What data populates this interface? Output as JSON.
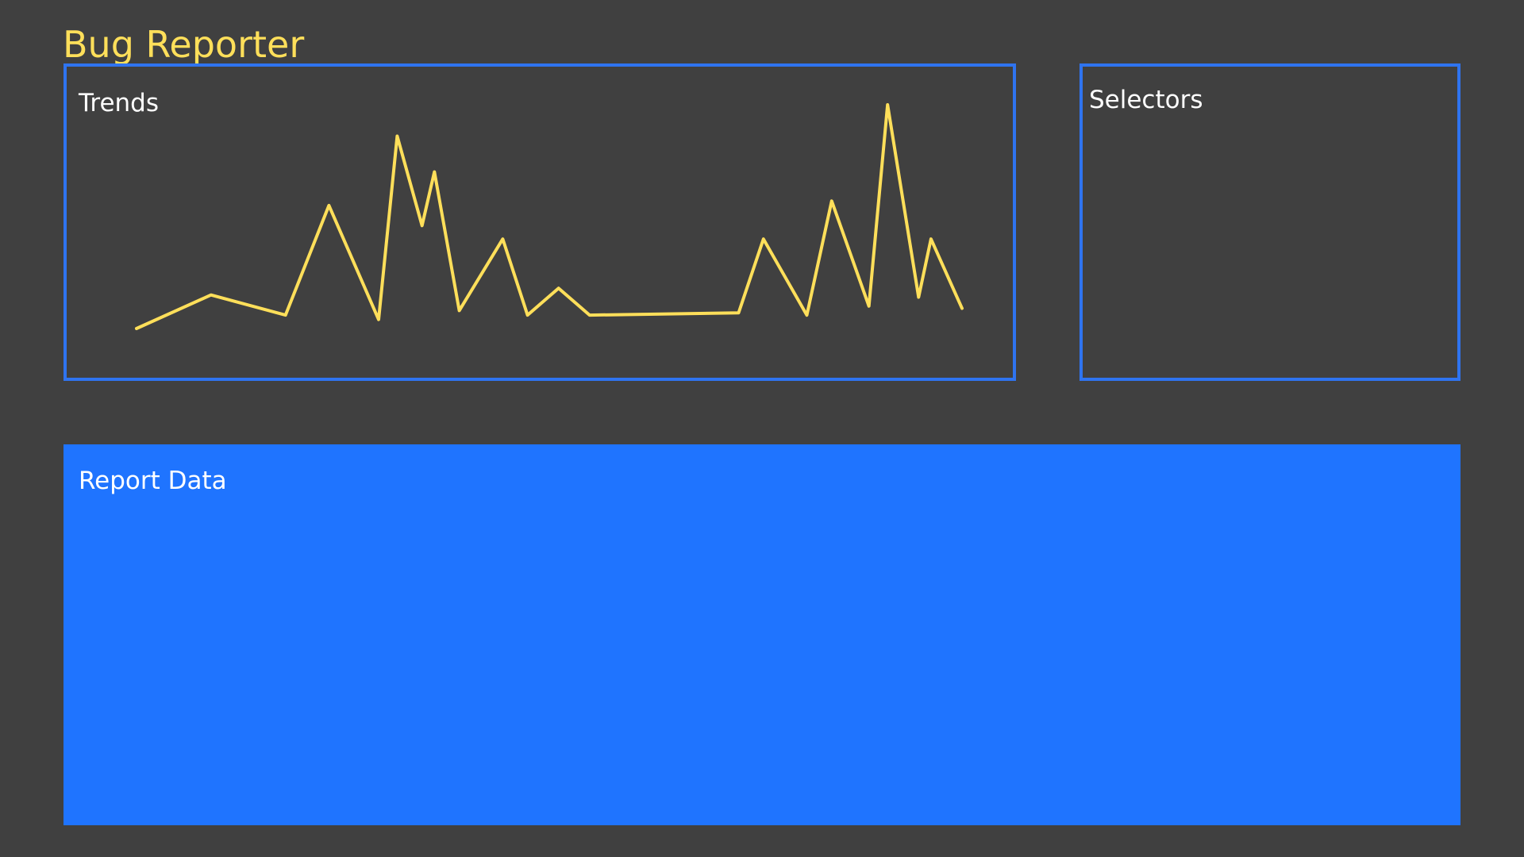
{
  "app": {
    "title": "Bug Reporter"
  },
  "trends": {
    "title": "Trends"
  },
  "selectors": {
    "title": "Selectors"
  },
  "report": {
    "title": "Report Data"
  },
  "colors": {
    "background": "#404040",
    "accent": "#2f74f0",
    "report_fill": "#1f74ff",
    "line": "#ffdf5a",
    "title": "#ffdf5a",
    "text": "#ffffff"
  },
  "chart_data": {
    "type": "line",
    "title": "Trends",
    "xlabel": "",
    "ylabel": "",
    "grid": false,
    "legend": "none",
    "ylim": [
      0,
      100
    ],
    "series": [
      {
        "values": [
          0,
          15,
          6,
          55,
          4,
          86,
          46,
          70,
          8,
          40,
          6,
          18,
          6,
          7,
          40,
          6,
          57,
          10,
          100,
          14,
          40,
          9
        ]
      }
    ],
    "x": [
      0,
      12,
      24,
      31,
      39,
      42,
      46,
      48,
      52,
      59,
      63,
      68,
      73,
      97,
      101,
      108,
      112,
      118,
      121,
      126,
      128,
      133
    ]
  }
}
